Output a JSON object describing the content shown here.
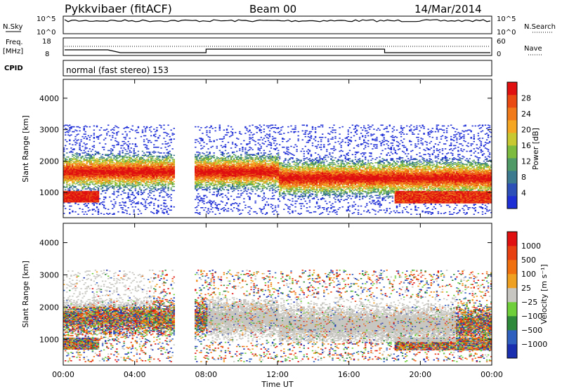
{
  "header": {
    "station": "Pykkvibaer (fitACF)",
    "beam": "Beam 00",
    "date": "14/Mar/2014"
  },
  "top_panels": {
    "nsky_label": "N.Sky",
    "nsky_ticks": [
      "10^5",
      "10^0"
    ],
    "nsearch_label": "N.Search",
    "nsearch_ticks": [
      "10^5",
      "10^0"
    ],
    "freq_label": "Freq.",
    "freq_unit": "[MHz]",
    "freq_ticks": [
      "18",
      "8"
    ],
    "nave_label": "Nave",
    "nave_ticks": [
      "60",
      "0"
    ],
    "cpid_label": "CPID",
    "cpid_text": "normal (fast stereo) 153"
  },
  "chart_data": [
    {
      "type": "heatmap",
      "title": "",
      "xlabel": "Time UT",
      "ylabel": "Slant Range [km]",
      "x_ticks": [
        "00:00",
        "04:00",
        "08:00",
        "12:00",
        "16:00",
        "20:00",
        "00:00"
      ],
      "xlim_hours": [
        0,
        24
      ],
      "y_ticks": [
        1000,
        2000,
        3000,
        4000
      ],
      "ylim": [
        200,
        4600
      ],
      "colorbar": {
        "label": "Power [dB]",
        "ticks": [
          "4",
          "8",
          "12",
          "16",
          "20",
          "24",
          "28"
        ],
        "colors": [
          "#1f2fd6",
          "#2d4fb8",
          "#3b7a8f",
          "#4f9a66",
          "#7dbb3e",
          "#c8c832",
          "#f5a623",
          "#f07a1a",
          "#e84a12",
          "#e01010"
        ]
      },
      "features": [
        {
          "kind": "band",
          "desc": "main scatter",
          "t_start": 0,
          "t_end": 24,
          "range_km": [
            1300,
            2000
          ],
          "peak_db": 28
        },
        {
          "kind": "band",
          "desc": "near range",
          "t_start": 0,
          "t_end": 1.5,
          "range_km": [
            700,
            1000
          ],
          "peak_db": 28
        },
        {
          "kind": "band",
          "desc": "late near range",
          "t_start": 18.5,
          "t_end": 24,
          "range_km": [
            700,
            1000
          ],
          "peak_db": 28
        }
      ]
    },
    {
      "type": "heatmap",
      "title": "",
      "xlabel": "Time UT",
      "ylabel": "Slant Range [km]",
      "x_ticks": [
        "00:00",
        "04:00",
        "08:00",
        "12:00",
        "16:00",
        "20:00",
        "00:00"
      ],
      "xlim_hours": [
        0,
        24
      ],
      "y_ticks": [
        1000,
        2000,
        3000,
        4000
      ],
      "ylim": [
        200,
        4600
      ],
      "colorbar": {
        "label": "Velocity [m s⁻¹]",
        "ticks": [
          "1000",
          "500",
          "100",
          "25",
          "−25",
          "−100",
          "−500",
          "−1000"
        ],
        "colors": [
          "#1a2fb0",
          "#2f5fbf",
          "#2e8a3a",
          "#6fcf3a",
          "#c8c6c0",
          "#f0a020",
          "#f07010",
          "#e84010",
          "#e01010"
        ]
      },
      "features": [
        {
          "kind": "band",
          "desc": "ground scatter",
          "t_start": 8,
          "t_end": 22,
          "range_km": [
            900,
            2100
          ],
          "velocity": "±25"
        }
      ]
    }
  ]
}
